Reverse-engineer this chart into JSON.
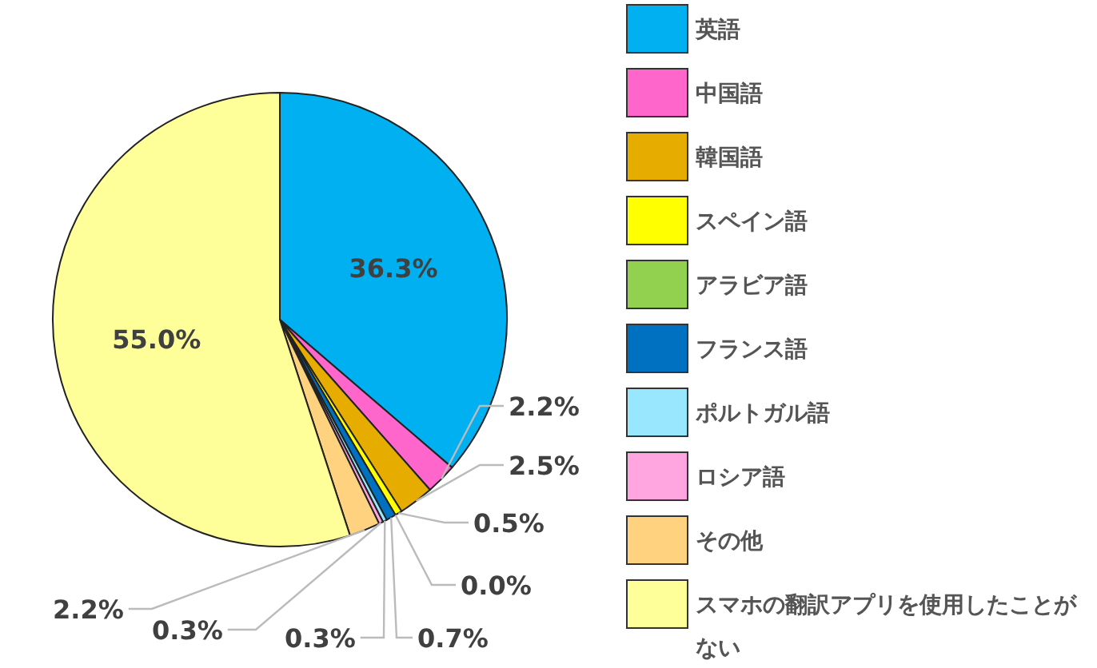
{
  "chart_data": {
    "type": "pie",
    "categories": [
      "英語",
      "中国語",
      "韓国語",
      "スペイン語",
      "アラビア語",
      "フランス語",
      "ポルトガル語",
      "ロシア語",
      "その他",
      "スマホの翻訳アプリを使用したことがない"
    ],
    "values": [
      36.3,
      2.2,
      2.5,
      0.5,
      0.0,
      0.7,
      0.3,
      0.3,
      2.2,
      55.0
    ],
    "value_labels": [
      "36.3%",
      "2.2%",
      "2.5%",
      "0.5%",
      "0.0%",
      "0.7%",
      "0.3%",
      "0.3%",
      "2.2%",
      "55.0%"
    ],
    "colors": [
      "#00b0f0",
      "#ff66cc",
      "#e6ac00",
      "#ffff00",
      "#92d050",
      "#0070c0",
      "#99e6ff",
      "#ffa6e0",
      "#ffd27f",
      "#ffff99"
    ],
    "legend": "right"
  }
}
